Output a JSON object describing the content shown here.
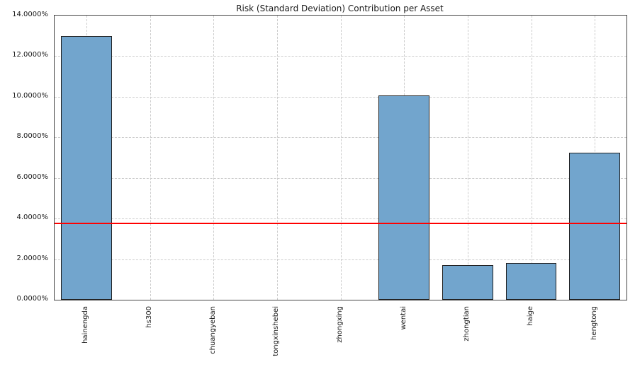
{
  "chart_data": {
    "type": "bar",
    "title": "Risk (Standard Deviation) Contribution per Asset",
    "categories": [
      "hainengda",
      "hs300",
      "chuangyeban",
      "tongxinshebei",
      "zhongxing",
      "wentai",
      "zhongtian",
      "haige",
      "hengtong"
    ],
    "values": [
      13.0,
      0.0,
      0.0,
      0.0,
      0.0,
      10.05,
      1.72,
      1.81,
      7.24
    ],
    "xlabel": "",
    "ylabel": "",
    "ylim": [
      0,
      14
    ],
    "yticks": [
      "0.0000%",
      "2.0000%",
      "4.0000%",
      "6.0000%",
      "8.0000%",
      "10.0000%",
      "12.0000%",
      "14.0000%"
    ],
    "ytick_values": [
      0,
      2,
      4,
      6,
      8,
      10,
      12,
      14
    ],
    "grid": true,
    "legend": "none",
    "bar_color": "#72a5cd",
    "bar_edge_color": "#1f1f1f",
    "reference_line": {
      "value": 3.76,
      "color": "#ff0000"
    }
  }
}
